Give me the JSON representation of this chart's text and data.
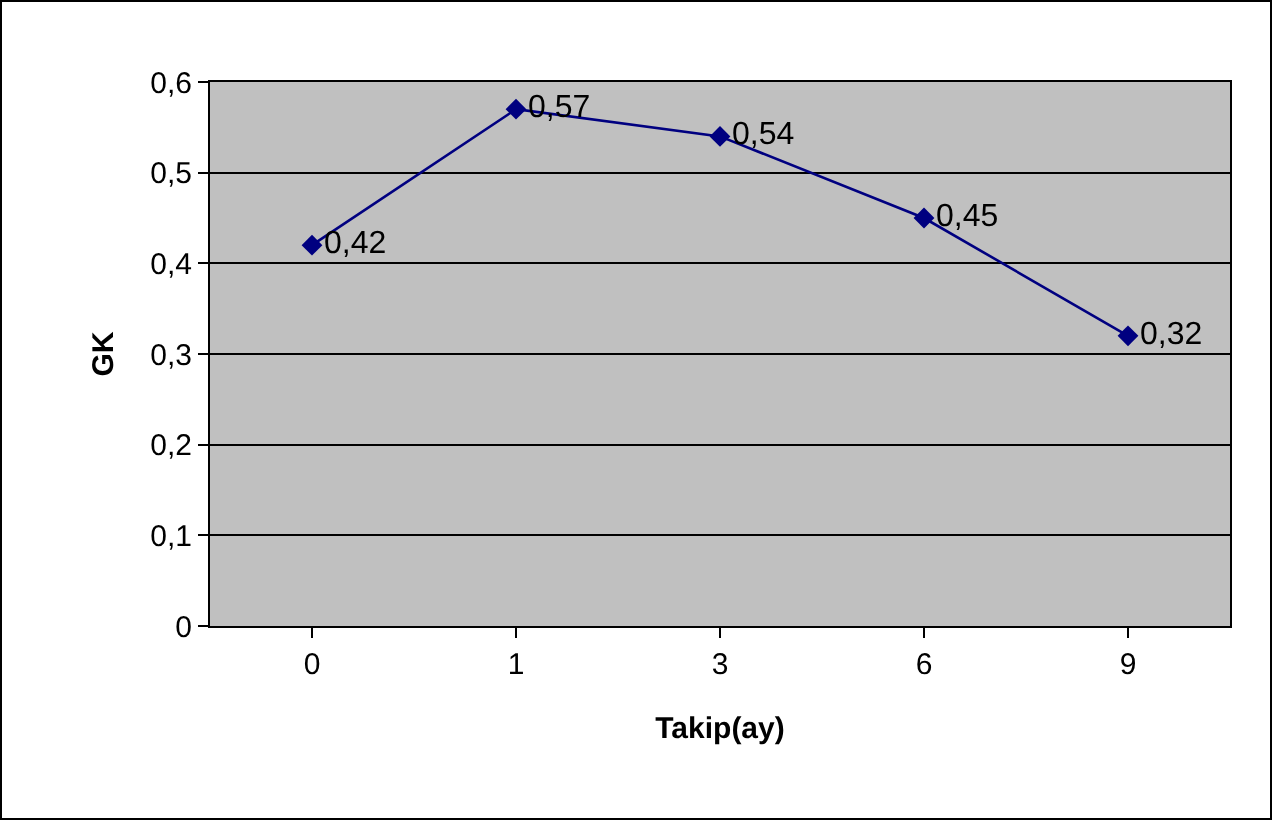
{
  "chart_data": {
    "type": "line",
    "xlabel": "Takip(ay)",
    "ylabel": "GK",
    "categories": [
      "0",
      "1",
      "3",
      "6",
      "9"
    ],
    "series": [
      {
        "color": "#000080",
        "values": [
          0.42,
          0.57,
          0.54,
          0.45,
          0.32
        ],
        "value_labels": [
          "0,42",
          "0,57",
          "0,54",
          "0,45",
          "0,32"
        ]
      }
    ],
    "ylim": [
      0,
      0.6
    ],
    "yticks": [
      0,
      {
        "value": 0.1,
        "label": "0,1"
      },
      {
        "value": 0.2,
        "label": "0,2"
      },
      {
        "value": 0.3,
        "label": "0,3"
      },
      {
        "value": 0.4,
        "label": "0,4"
      },
      {
        "value": 0.5,
        "label": "0,5"
      },
      {
        "value": 0.6,
        "label": "0,6"
      }
    ],
    "grid": "y",
    "marker": "diamond",
    "line_style": "solid"
  }
}
